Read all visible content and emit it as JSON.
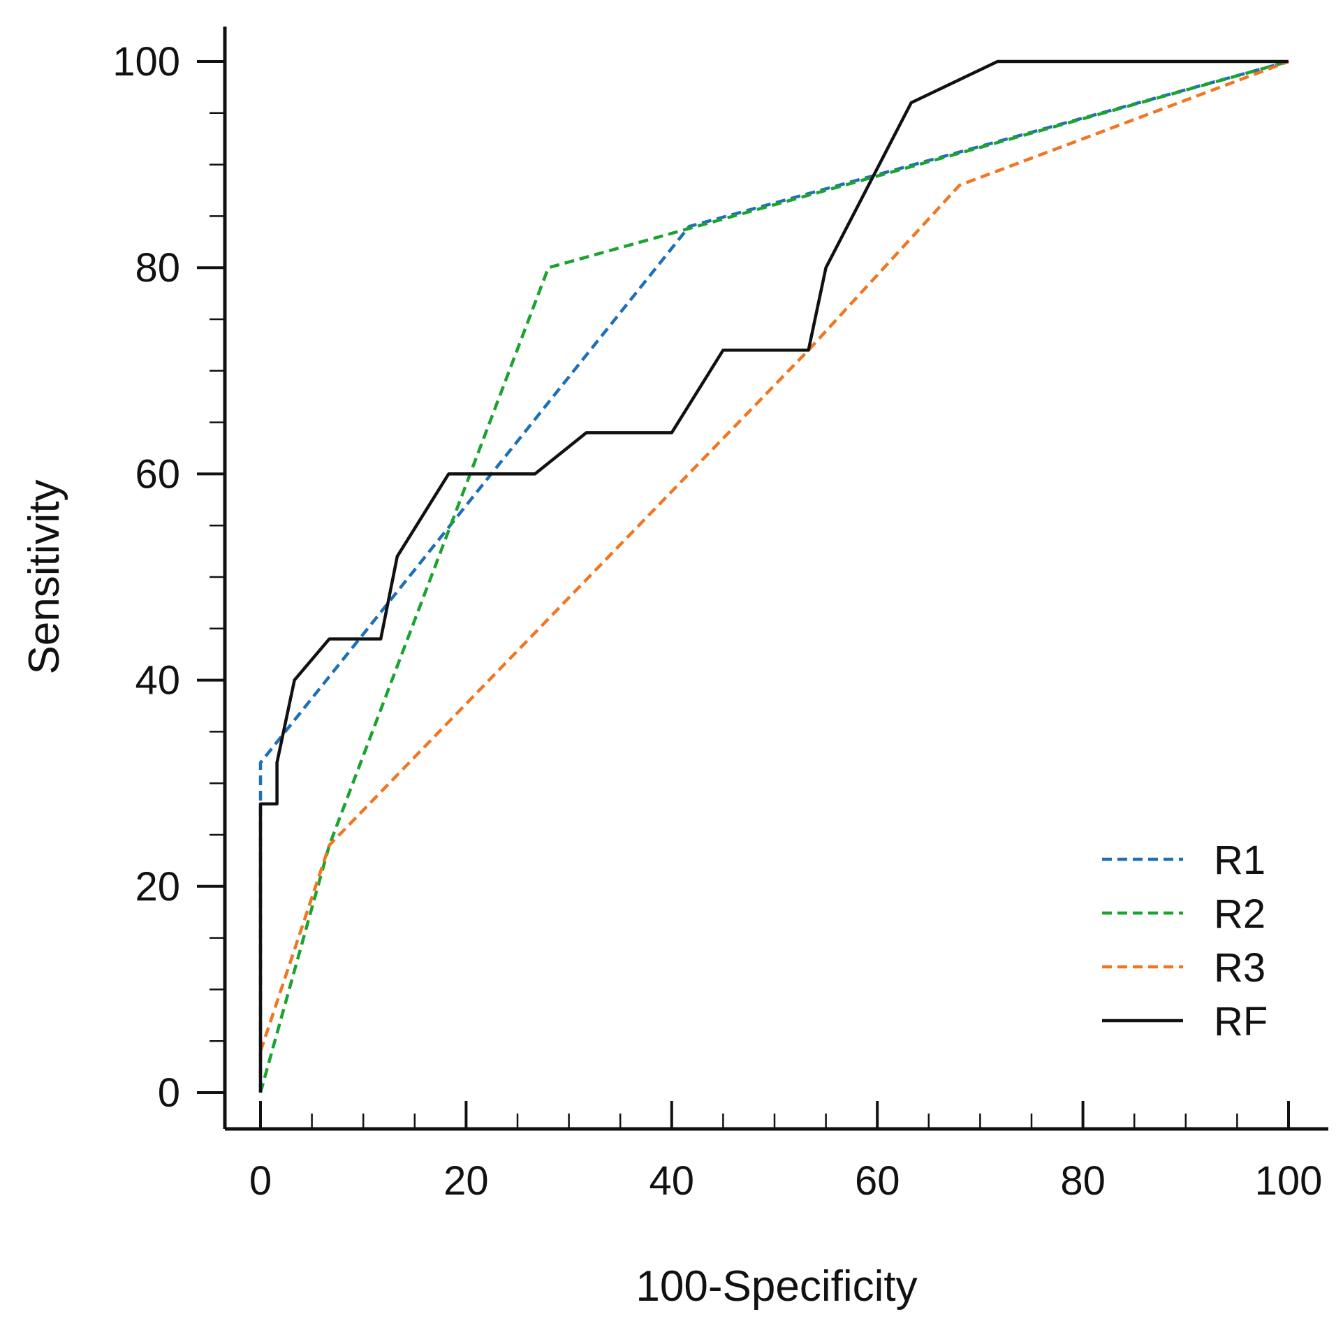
{
  "chart_data": {
    "type": "line",
    "title": "",
    "xlabel": "100-Specificity",
    "ylabel": "Sensitivity",
    "xlim": [
      0,
      100
    ],
    "ylim": [
      0,
      100
    ],
    "x_ticks": [
      0,
      20,
      40,
      60,
      80,
      100
    ],
    "y_ticks": [
      0,
      20,
      40,
      60,
      80,
      100
    ],
    "minor_tick_step": 5,
    "grid": false,
    "legend_position": "bottom-right",
    "series": [
      {
        "name": "R1",
        "color": "#1f6fb5",
        "style": "dashed",
        "points": [
          [
            0,
            0
          ],
          [
            0,
            32
          ],
          [
            41.7,
            84
          ],
          [
            100,
            100
          ]
        ]
      },
      {
        "name": "R2",
        "color": "#1aa32e",
        "style": "dashed",
        "points": [
          [
            0,
            0
          ],
          [
            6.7,
            24
          ],
          [
            28,
            80
          ],
          [
            100,
            100
          ]
        ]
      },
      {
        "name": "R3",
        "color": "#f07623",
        "style": "dashed",
        "points": [
          [
            0,
            4
          ],
          [
            6.7,
            24
          ],
          [
            53.3,
            72
          ],
          [
            68,
            88
          ],
          [
            100,
            100
          ]
        ]
      },
      {
        "name": "RF",
        "color": "#111111",
        "style": "solid",
        "points": [
          [
            0,
            0
          ],
          [
            0,
            28
          ],
          [
            1.6,
            28
          ],
          [
            1.6,
            32
          ],
          [
            3.3,
            40
          ],
          [
            6.7,
            44
          ],
          [
            11.7,
            44
          ],
          [
            13.3,
            52
          ],
          [
            18.3,
            60
          ],
          [
            26.7,
            60
          ],
          [
            31.7,
            64
          ],
          [
            40,
            64
          ],
          [
            45,
            72
          ],
          [
            53.3,
            72
          ],
          [
            55,
            80
          ],
          [
            63.3,
            96
          ],
          [
            71.7,
            100
          ],
          [
            100,
            100
          ]
        ]
      }
    ]
  }
}
